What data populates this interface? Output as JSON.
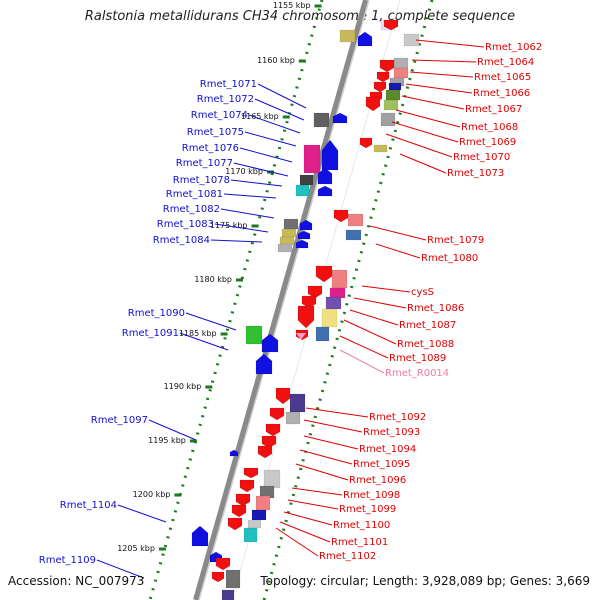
{
  "title": "Ralstonia metallidurans CH34 chromosome 1, complete sequence",
  "footer": {
    "accession": "Accession: NC_007973",
    "summary": "Topology: circular; Length: 3,928,089 bp; Genes: 3,669"
  },
  "ticks": [
    "1155 kbp",
    "1160 kbp",
    "1165 kbp",
    "1170 kbp",
    "1175 kbp",
    "1180 kbp",
    "1185 kbp",
    "1190 kbp",
    "1195 kbp",
    "1200 kbp",
    "1205 kbp"
  ],
  "left_labels": [
    "Rmet_1071",
    "Rmet_1072",
    "Rmet_1074",
    "Rmet_1075",
    "Rmet_1076",
    "Rmet_1077",
    "Rmet_1078",
    "Rmet_1081",
    "Rmet_1082",
    "Rmet_1083",
    "Rmet_1084",
    "Rmet_1090",
    "Rmet_1091",
    "Rmet_1097",
    "Rmet_1104",
    "Rmet_1109"
  ],
  "right_labels": [
    "Rmet_1062",
    "Rmet_1064",
    "Rmet_1065",
    "Rmet_1066",
    "Rmet_1067",
    "Rmet_1068",
    "Rmet_1069",
    "Rmet_1070",
    "Rmet_1073",
    "Rmet_1079",
    "Rmet_1080",
    "cysS",
    "Rmet_1086",
    "Rmet_1087",
    "Rmet_1088",
    "Rmet_1089",
    "Rmet_R0014",
    "Rmet_1092",
    "Rmet_1093",
    "Rmet_1094",
    "Rmet_1095",
    "Rmet_1096",
    "Rmet_1098",
    "Rmet_1099",
    "Rmet_1100",
    "Rmet_1101",
    "Rmet_1102"
  ],
  "colors": {
    "left_label": "#1010d0",
    "right_label": "#e00000",
    "rna_label": "#f07aa8",
    "backbone": "#8a8a8a",
    "dots": "#1e7a1e"
  }
}
